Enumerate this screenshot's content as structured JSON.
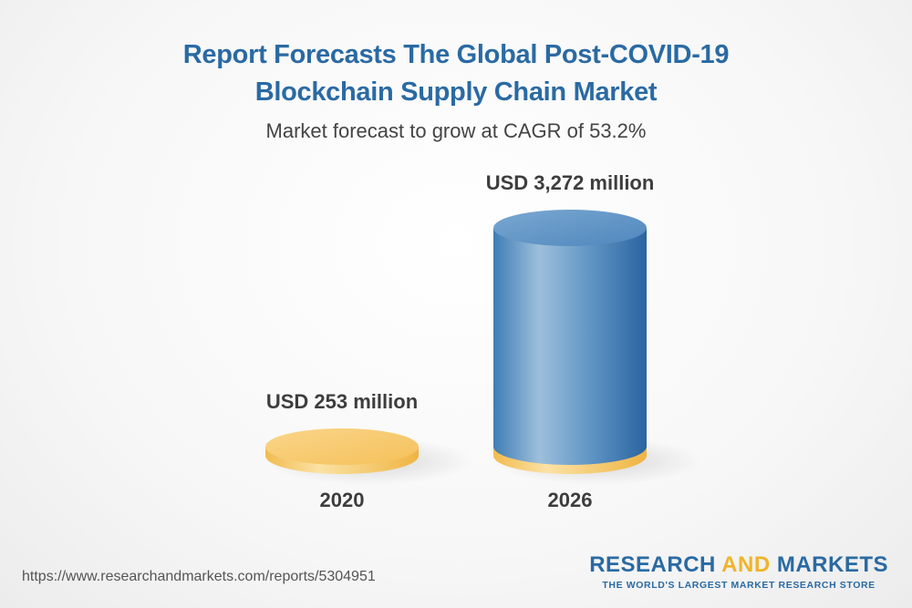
{
  "header": {
    "title_line1": "Report Forecasts The Global Post-COVID-19",
    "title_line2": "Blockchain Supply Chain Market",
    "subtitle": "Market forecast to grow at CAGR of 53.2%"
  },
  "chart_data": {
    "type": "bar",
    "style": "3d-cylinder",
    "categories": [
      "2020",
      "2026"
    ],
    "values": [
      253,
      3272
    ],
    "unit": "USD million",
    "data_labels": [
      "USD 253 million",
      "USD 3,272 million"
    ],
    "colors": {
      "base": "#f5c45e",
      "bar": "#3a7ab3"
    }
  },
  "footer": {
    "url": "https://www.researchandmarkets.com/reports/5304951",
    "brand_part1": "RESEARCH ",
    "brand_part2": "AND",
    "brand_part3": " MARKETS",
    "tagline": "THE WORLD'S LARGEST MARKET RESEARCH STORE"
  }
}
